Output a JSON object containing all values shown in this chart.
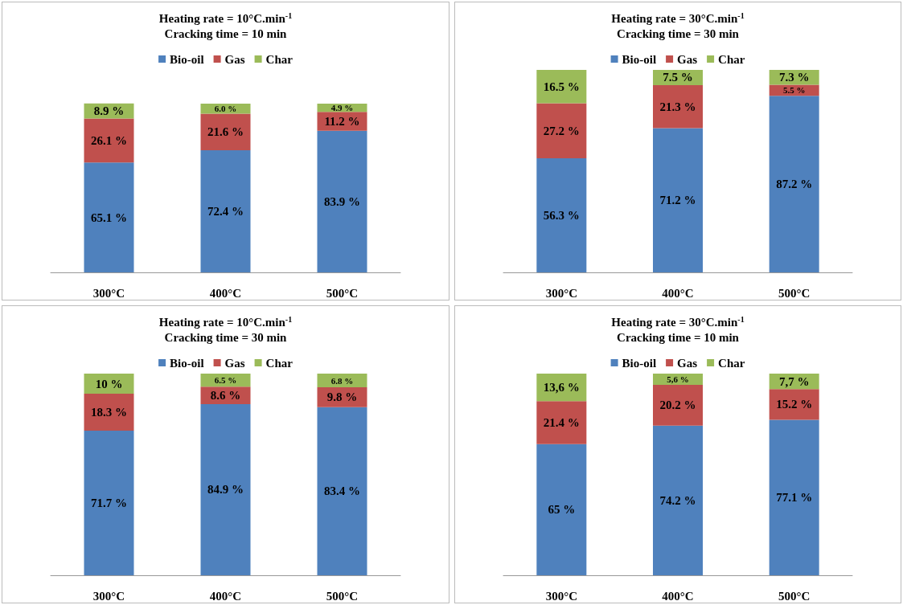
{
  "chart_data": [
    {
      "type": "bar",
      "stacked": true,
      "title": "Heating rate = 10°C.min$^{-1}$",
      "subtitle": "Cracking time = 10 min",
      "categories": [
        "300°C",
        "400°C",
        "500°C"
      ],
      "legend": "top",
      "series": [
        {
          "name": "Bio-oil",
          "color": "#4f81bd",
          "values": [
            65.1,
            72.4,
            83.9
          ],
          "value_labels": [
            "65.1 %",
            "72.4 %",
            "83.9 %"
          ]
        },
        {
          "name": "Gas",
          "color": "#c0504d",
          "values": [
            26.1,
            21.6,
            11.2
          ],
          "value_labels": [
            "26.1 %",
            "21.6 %",
            "11.2 %"
          ]
        },
        {
          "name": "Char",
          "color": "#9bbb59",
          "values": [
            8.9,
            6.0,
            4.9
          ],
          "value_labels": [
            "8.9 %",
            "6.0 %",
            "4.9 %"
          ]
        }
      ]
    },
    {
      "type": "bar",
      "stacked": true,
      "title": "Heating rate = 30°C.min$^{-1}$",
      "subtitle": "Cracking time = 30 min",
      "categories": [
        "300°C",
        "400°C",
        "500°C"
      ],
      "legend": "top",
      "series": [
        {
          "name": "Bio-oil",
          "color": "#4f81bd",
          "values": [
            56.3,
            71.2,
            87.2
          ],
          "value_labels": [
            "56.3 %",
            "71.2 %",
            "87.2 %"
          ]
        },
        {
          "name": "Gas",
          "color": "#c0504d",
          "values": [
            27.2,
            21.3,
            5.5
          ],
          "value_labels": [
            "27.2 %",
            "21.3 %",
            "5.5 %"
          ]
        },
        {
          "name": "Char",
          "color": "#9bbb59",
          "values": [
            16.5,
            7.5,
            7.3
          ],
          "value_labels": [
            "16.5 %",
            "7.5 %",
            "7.3 %"
          ]
        }
      ]
    },
    {
      "type": "bar",
      "stacked": true,
      "title": "Heating rate = 10°C.min$^{-1}$",
      "subtitle": "Cracking time = 30 min",
      "categories": [
        "300°C",
        "400°C",
        "500°C"
      ],
      "legend": "top",
      "series": [
        {
          "name": "Bio-oil",
          "color": "#4f81bd",
          "values": [
            71.7,
            84.9,
            83.4
          ],
          "value_labels": [
            "71.7 %",
            "84.9 %",
            "83.4 %"
          ]
        },
        {
          "name": "Gas",
          "color": "#c0504d",
          "values": [
            18.3,
            8.6,
            9.8
          ],
          "value_labels": [
            "18.3 %",
            "8.6 %",
            "9.8 %"
          ]
        },
        {
          "name": "Char",
          "color": "#9bbb59",
          "values": [
            10,
            6.5,
            6.8
          ],
          "value_labels": [
            "10 %",
            "6.5 %",
            "6.8 %"
          ]
        }
      ]
    },
    {
      "type": "bar",
      "stacked": true,
      "title": "Heating rate = 30°C.min$^{-1}$",
      "subtitle": "Cracking time = 10 min",
      "categories": [
        "300°C",
        "400°C",
        "500°C"
      ],
      "legend": "top",
      "series": [
        {
          "name": "Bio-oil",
          "color": "#4f81bd",
          "values": [
            65,
            74.2,
            77.1
          ],
          "value_labels": [
            "65 %",
            "74.2 %",
            "77.1 %"
          ]
        },
        {
          "name": "Gas",
          "color": "#c0504d",
          "values": [
            21.4,
            20.2,
            15.2
          ],
          "value_labels": [
            "21.4 %",
            "20.2 %",
            "15.2 %"
          ]
        },
        {
          "name": "Char",
          "color": "#9bbb59",
          "values": [
            13.6,
            5.6,
            7.7
          ],
          "value_labels": [
            "13,6 %",
            "5,6 %",
            "7,7 %"
          ]
        }
      ]
    }
  ]
}
